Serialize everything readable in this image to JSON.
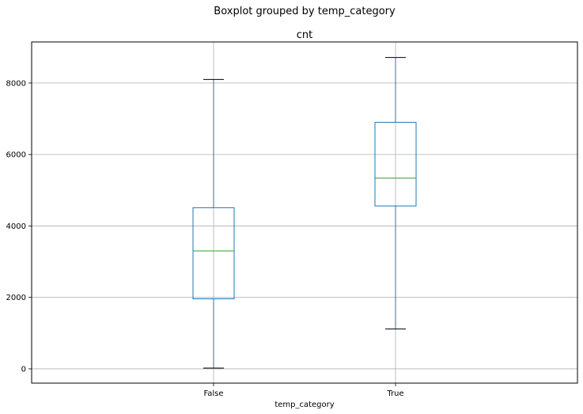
{
  "chart_data": {
    "type": "box",
    "suptitle": "Boxplot grouped by temp_category",
    "title": "cnt",
    "xlabel": "temp_category",
    "ylabel": "",
    "categories": [
      "False",
      "True"
    ],
    "boxes": [
      {
        "category": "False",
        "whisker_low": 22,
        "q1": 1960,
        "median": 3300,
        "q3": 4510,
        "whisker_high": 8100
      },
      {
        "category": "True",
        "whisker_low": 1115,
        "q1": 4560,
        "median": 5340,
        "q3": 6900,
        "whisker_high": 8714
      }
    ],
    "ylim": [
      -400,
      9150
    ],
    "yticks": [
      0,
      2000,
      4000,
      6000,
      8000
    ],
    "grid": true,
    "colors": {
      "box": "#1f77b4",
      "median": "#2ca02c",
      "cap": "#000000",
      "grid": "#b0b0b0"
    }
  }
}
